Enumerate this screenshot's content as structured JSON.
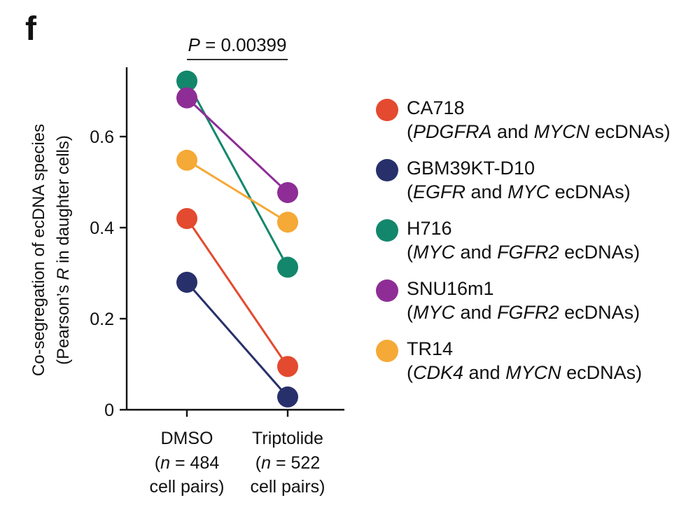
{
  "panel_label": "f",
  "chart_data": {
    "type": "scatter",
    "subtype": "paired-dot",
    "title": "",
    "ylabel_line1": "Co-segregation of ecDNA species",
    "ylabel_line2_prefix": "(Pearson’s ",
    "ylabel_line2_italic": "R",
    "ylabel_line2_suffix": " in daughter cells)",
    "ylim": [
      0,
      0.75
    ],
    "yticks": [
      0,
      0.2,
      0.4,
      0.6
    ],
    "ytick_labels": [
      "0",
      "0.2",
      "0.4",
      "0.6"
    ],
    "categories": [
      {
        "name": "DMSO",
        "n_prefix": "(",
        "n_italic": "n",
        "n_suffix": " = 484",
        "line3": "cell pairs)"
      },
      {
        "name": "Triptolide",
        "n_prefix": "(",
        "n_italic": "n",
        "n_suffix": " = 522",
        "line3": "cell pairs)"
      }
    ],
    "pvalue": {
      "italic": "P",
      "text": " = 0.00399"
    },
    "series": [
      {
        "name": "CA718",
        "color": "#e34a2f",
        "values": [
          0.42,
          0.095
        ],
        "desc_parts": [
          [
            "(",
            false
          ],
          [
            "PDGFRA",
            true
          ],
          [
            " and ",
            false
          ],
          [
            "MYCN",
            true
          ],
          [
            " ecDNAs)",
            false
          ]
        ]
      },
      {
        "name": "GBM39KT-D10",
        "color": "#28306b",
        "values": [
          0.28,
          0.028
        ],
        "desc_parts": [
          [
            "(",
            false
          ],
          [
            "EGFR",
            true
          ],
          [
            " and ",
            false
          ],
          [
            "MYC",
            true
          ],
          [
            " ecDNAs)",
            false
          ]
        ]
      },
      {
        "name": "H716",
        "color": "#13876b",
        "values": [
          0.722,
          0.313
        ],
        "desc_parts": [
          [
            "(",
            false
          ],
          [
            "MYC",
            true
          ],
          [
            " and ",
            false
          ],
          [
            "FGFR2",
            true
          ],
          [
            " ecDNAs)",
            false
          ]
        ]
      },
      {
        "name": "SNU16m1",
        "color": "#8e2d96",
        "values": [
          0.685,
          0.477
        ],
        "desc_parts": [
          [
            "(",
            false
          ],
          [
            "MYC",
            true
          ],
          [
            " and ",
            false
          ],
          [
            "FGFR2",
            true
          ],
          [
            " ecDNAs)",
            false
          ]
        ]
      },
      {
        "name": "TR14",
        "color": "#f5a936",
        "values": [
          0.548,
          0.412
        ],
        "desc_parts": [
          [
            "(",
            false
          ],
          [
            "CDK4",
            true
          ],
          [
            " and ",
            false
          ],
          [
            "MYCN",
            true
          ],
          [
            " ecDNAs)",
            false
          ]
        ]
      }
    ]
  }
}
